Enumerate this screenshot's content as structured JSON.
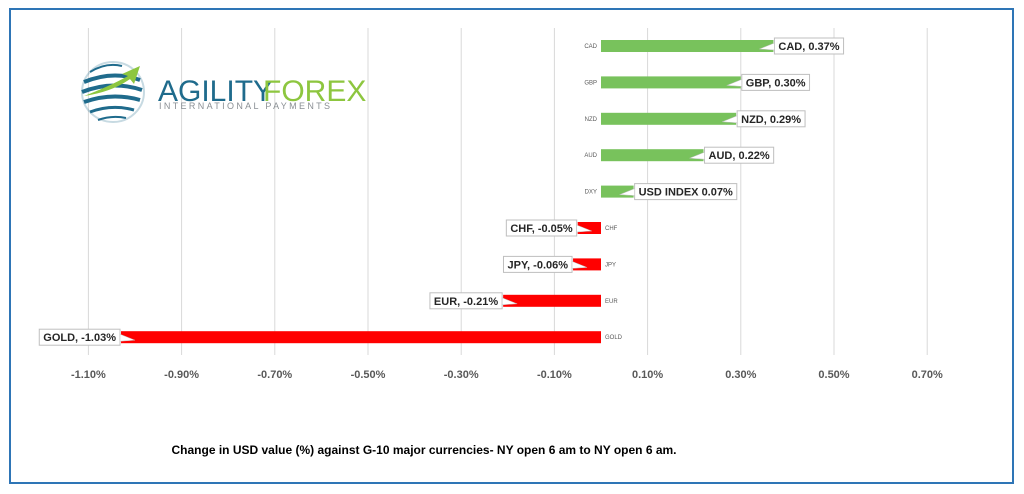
{
  "logo": {
    "brand_part1": "AGILITY",
    "brand_part2": "FOREX",
    "tagline": "INTERNATIONAL PAYMENTS",
    "colors": {
      "green": "#8dc63f",
      "blue": "#1f6b8c",
      "gray": "#8a8f94"
    }
  },
  "caption": "Change in  USD value (%)  against  G-10 major currencies- NY open 6 am to NY open 6 am.",
  "chart_data": {
    "type": "bar",
    "orientation": "horizontal",
    "categories": [
      "CAD",
      "GBP",
      "NZD",
      "AUD",
      "DXY",
      "CHF",
      "JPY",
      "EUR",
      "GOLD"
    ],
    "values": [
      0.37,
      0.3,
      0.29,
      0.22,
      0.07,
      -0.05,
      -0.06,
      -0.21,
      -1.03
    ],
    "data_labels": [
      "CAD, 0.37%",
      "GBP, 0.30%",
      "NZD, 0.29%",
      "AUD, 0.22%",
      "USD INDEX 0.07%",
      "CHF, -0.05%",
      "JPY, -0.06%",
      "EUR, -0.21%",
      "GOLD, -1.03%"
    ],
    "x_ticks": [
      "-1.10%",
      "-0.90%",
      "-0.70%",
      "-0.50%",
      "-0.30%",
      "-0.10%",
      "0.10%",
      "0.30%",
      "0.50%",
      "0.70%"
    ],
    "x_tick_values": [
      -1.1,
      -0.9,
      -0.7,
      -0.5,
      -0.3,
      -0.1,
      0.1,
      0.3,
      0.5,
      0.7
    ],
    "xlim": [
      -1.2,
      0.8
    ],
    "grid": true,
    "colors": {
      "positive": "#78c25c",
      "negative": "#ff0000",
      "grid": "#d9d9d9"
    }
  }
}
